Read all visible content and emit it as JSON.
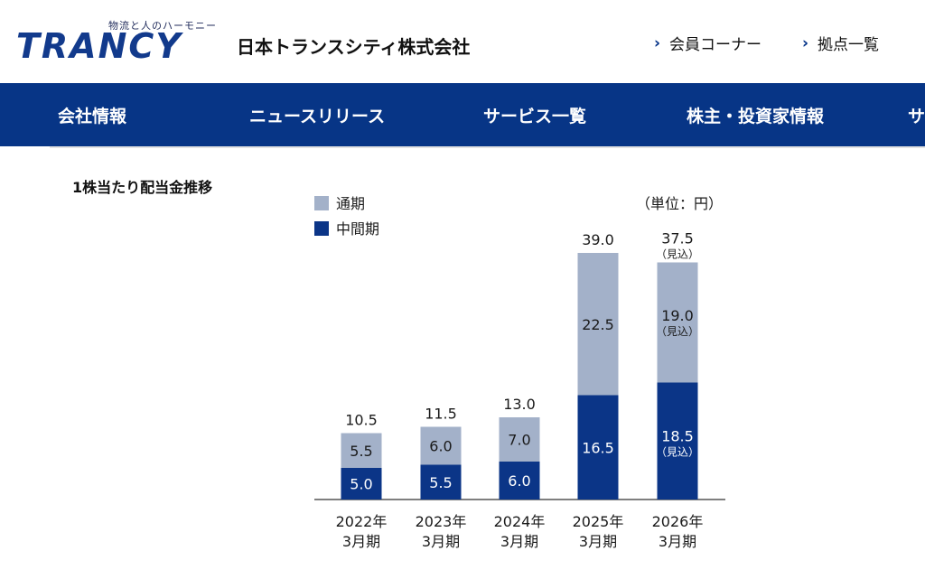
{
  "header": {
    "logo_text": "TRANCY",
    "tagline": "物流と人のハーモニー",
    "company_name": "日本トランスシティ株式会社",
    "links": [
      "会員コーナー",
      "拠点一覧"
    ]
  },
  "nav": {
    "items": [
      "会社情報",
      "ニュースリリース",
      "サービス一覧",
      "株主・投資家情報",
      "サ"
    ]
  },
  "colors": {
    "nav_bg": "#073586",
    "interim": "#0b3587",
    "annual": "#a3b1c9"
  },
  "chart_data": {
    "type": "bar",
    "stacked": true,
    "title": "1株当たり配当金推移",
    "unit": "（単位：円）",
    "categories": [
      "2022年\n3月期",
      "2023年\n3月期",
      "2024年\n3月期",
      "2025年\n3月期",
      "2026年\n3月期"
    ],
    "series": [
      {
        "name": "中間期",
        "values": [
          5.0,
          5.5,
          6.0,
          16.5,
          18.5
        ]
      },
      {
        "name": "通期",
        "values": [
          5.5,
          6.0,
          7.0,
          22.5,
          19.0
        ]
      }
    ],
    "totals": [
      10.5,
      11.5,
      13.0,
      39.0,
      37.5
    ],
    "forecast_note": "（見込）",
    "forecast_index": 4,
    "legend_position": "top-left",
    "ylim": [
      0,
      40
    ]
  }
}
